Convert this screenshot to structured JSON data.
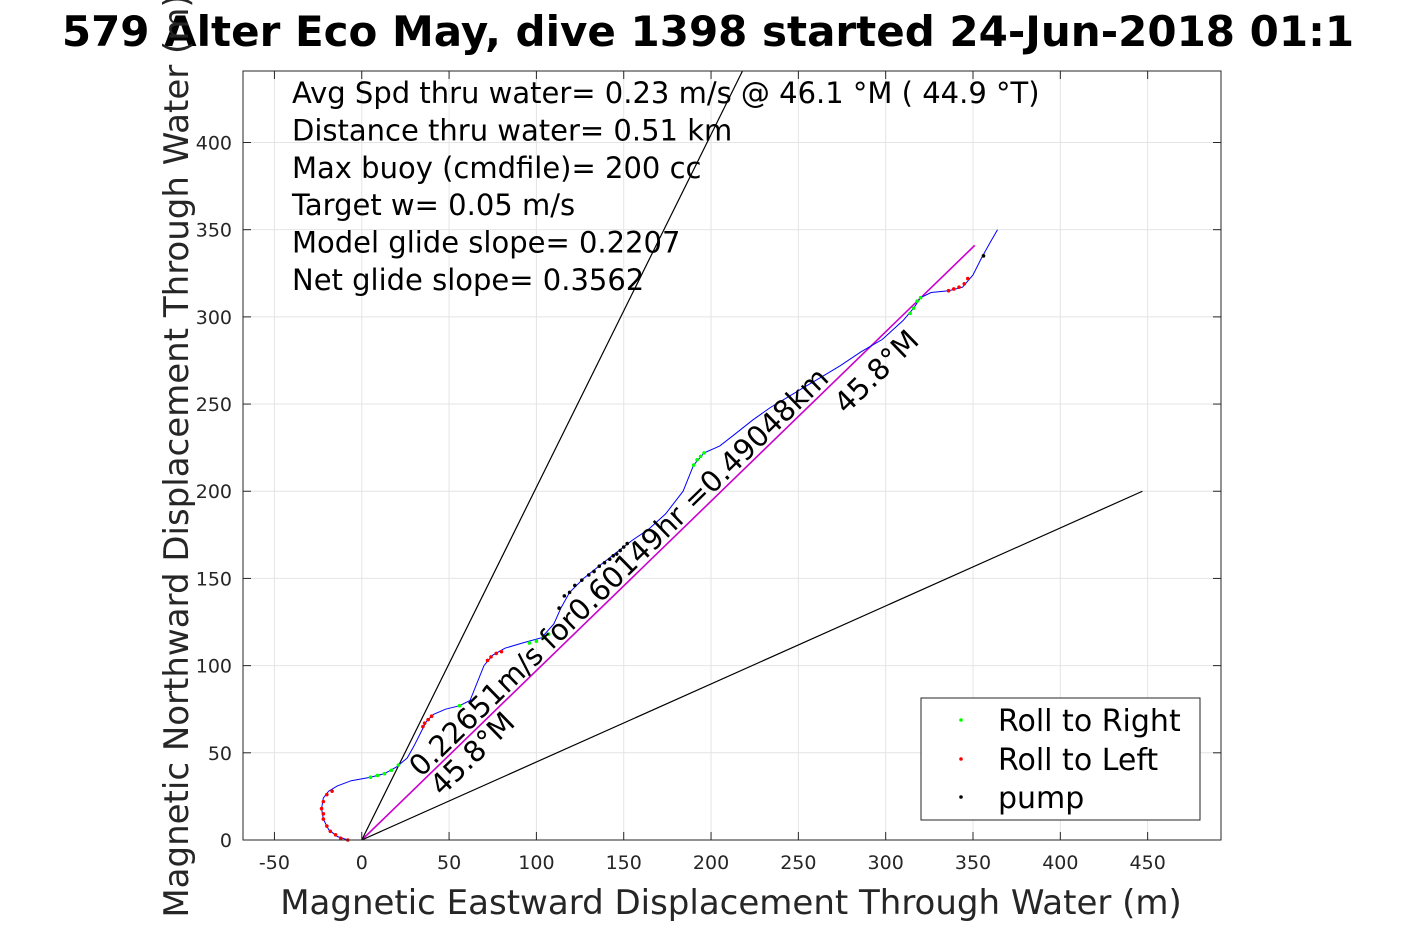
{
  "title": "579 Alter Eco May, dive 1398 started 24-Jun-2018 01:1",
  "info_lines": [
    "Avg Spd thru water=  0.23 m/s @  46.1 °M ( 44.9 °T)",
    "Distance thru water=  0.51 km",
    "Max buoy (cmdfile)= 200 cc",
    "Target w= 0.05 m/s",
    "Model glide slope= 0.2207",
    "Net glide slope= 0.3562"
  ],
  "annotations": {
    "track_label": "0.22651m/s for0.60149hr =0.49048km",
    "heading_label_1": "45.8°M",
    "heading_label_2": "45.8°M"
  },
  "legend": [
    {
      "label": "Roll to Right",
      "color": "#00ff00"
    },
    {
      "label": "Roll to Left",
      "color": "#ff0000"
    },
    {
      "label": "pump",
      "color": "#000000"
    }
  ],
  "chart_data": {
    "type": "scatter",
    "title": "579 Alter Eco May, dive 1398 started 24-Jun-2018 01:1",
    "xlabel": "Magnetic Eastward Displacement Through Water (m)",
    "ylabel": "Magnetic Northward Displacement Through Water (m)",
    "xlim": [
      -68,
      492
    ],
    "ylim": [
      0,
      441
    ],
    "xticks": [
      -50,
      0,
      50,
      100,
      150,
      200,
      250,
      300,
      350,
      400,
      450
    ],
    "yticks": [
      0,
      50,
      100,
      150,
      200,
      250,
      300,
      350,
      400
    ],
    "grid": true,
    "legend_position": "bottom-right",
    "series": [
      {
        "name": "track",
        "color": "#0000ff",
        "points": [
          [
            0,
            0
          ],
          [
            -8,
            0
          ],
          [
            -14,
            2
          ],
          [
            -19,
            6
          ],
          [
            -22,
            12
          ],
          [
            -23,
            18
          ],
          [
            -22,
            24
          ],
          [
            -19,
            28
          ],
          [
            -14,
            31
          ],
          [
            -6,
            34
          ],
          [
            5,
            36
          ],
          [
            13,
            38
          ],
          [
            20,
            42
          ],
          [
            26,
            47
          ],
          [
            30,
            54
          ],
          [
            34,
            62
          ],
          [
            37,
            68
          ],
          [
            41,
            72
          ],
          [
            48,
            75
          ],
          [
            56,
            77
          ],
          [
            62,
            80
          ],
          [
            66,
            90
          ],
          [
            70,
            100
          ],
          [
            75,
            106
          ],
          [
            82,
            110
          ],
          [
            92,
            113
          ],
          [
            103,
            116
          ],
          [
            110,
            124
          ],
          [
            114,
            133
          ],
          [
            119,
            142
          ],
          [
            127,
            150
          ],
          [
            137,
            158
          ],
          [
            146,
            165
          ],
          [
            155,
            172
          ],
          [
            164,
            178
          ],
          [
            174,
            187
          ],
          [
            184,
            200
          ],
          [
            190,
            215
          ],
          [
            196,
            222
          ],
          [
            205,
            226
          ],
          [
            214,
            233
          ],
          [
            224,
            241
          ],
          [
            234,
            248
          ],
          [
            244,
            254
          ],
          [
            254,
            260
          ],
          [
            264,
            266
          ],
          [
            274,
            272
          ],
          [
            286,
            280
          ],
          [
            298,
            287
          ],
          [
            310,
            298
          ],
          [
            316,
            305
          ],
          [
            320,
            311
          ],
          [
            326,
            314
          ],
          [
            336,
            315
          ],
          [
            344,
            317
          ],
          [
            350,
            324
          ],
          [
            355,
            334
          ],
          [
            360,
            343
          ],
          [
            364,
            350
          ]
        ]
      },
      {
        "name": "Roll to Right",
        "color": "#00ff00",
        "points": [
          [
            5,
            36
          ],
          [
            9,
            37
          ],
          [
            13,
            38
          ],
          [
            17,
            40
          ],
          [
            21,
            43
          ],
          [
            56,
            77
          ],
          [
            96,
            113
          ],
          [
            100,
            114
          ],
          [
            104,
            116
          ],
          [
            107,
            118
          ],
          [
            190,
            215
          ],
          [
            192,
            218
          ],
          [
            194,
            220
          ],
          [
            196,
            222
          ],
          [
            314,
            302
          ],
          [
            316,
            305
          ],
          [
            318,
            309
          ],
          [
            320,
            311
          ]
        ]
      },
      {
        "name": "Roll to Left",
        "color": "#ff0000",
        "points": [
          [
            -8,
            0
          ],
          [
            -12,
            1
          ],
          [
            -15,
            3
          ],
          [
            -18,
            5
          ],
          [
            -20,
            8
          ],
          [
            -22,
            12
          ],
          [
            -22,
            15
          ],
          [
            -23,
            18
          ],
          [
            -22,
            22
          ],
          [
            -20,
            26
          ],
          [
            -17,
            28
          ],
          [
            35,
            65
          ],
          [
            36,
            67
          ],
          [
            38,
            69
          ],
          [
            40,
            71
          ],
          [
            72,
            103
          ],
          [
            74,
            105
          ],
          [
            77,
            107
          ],
          [
            80,
            108
          ],
          [
            336,
            315
          ],
          [
            339,
            316
          ],
          [
            342,
            317
          ],
          [
            345,
            319
          ],
          [
            347,
            322
          ]
        ]
      },
      {
        "name": "pump",
        "color": "#000000",
        "points": [
          [
            113,
            133
          ],
          [
            116,
            140
          ],
          [
            119,
            142
          ],
          [
            122,
            146
          ],
          [
            126,
            149
          ],
          [
            130,
            152
          ],
          [
            133,
            154
          ],
          [
            136,
            157
          ],
          [
            139,
            159
          ],
          [
            142,
            161
          ],
          [
            144,
            163
          ],
          [
            146,
            164
          ],
          [
            148,
            166
          ],
          [
            150,
            168
          ],
          [
            152,
            170
          ],
          [
            356,
            335
          ]
        ]
      }
    ],
    "reference_lines": [
      {
        "name": "heading",
        "color": "#cc00cc",
        "from": [
          0,
          0
        ],
        "to": [
          351,
          341
        ]
      },
      {
        "name": "bound-upper",
        "color": "#000000",
        "from": [
          0,
          0
        ],
        "to": [
          218,
          441
        ]
      },
      {
        "name": "bound-lower",
        "color": "#000000",
        "from": [
          0,
          0
        ],
        "to": [
          447,
          200
        ]
      }
    ]
  }
}
